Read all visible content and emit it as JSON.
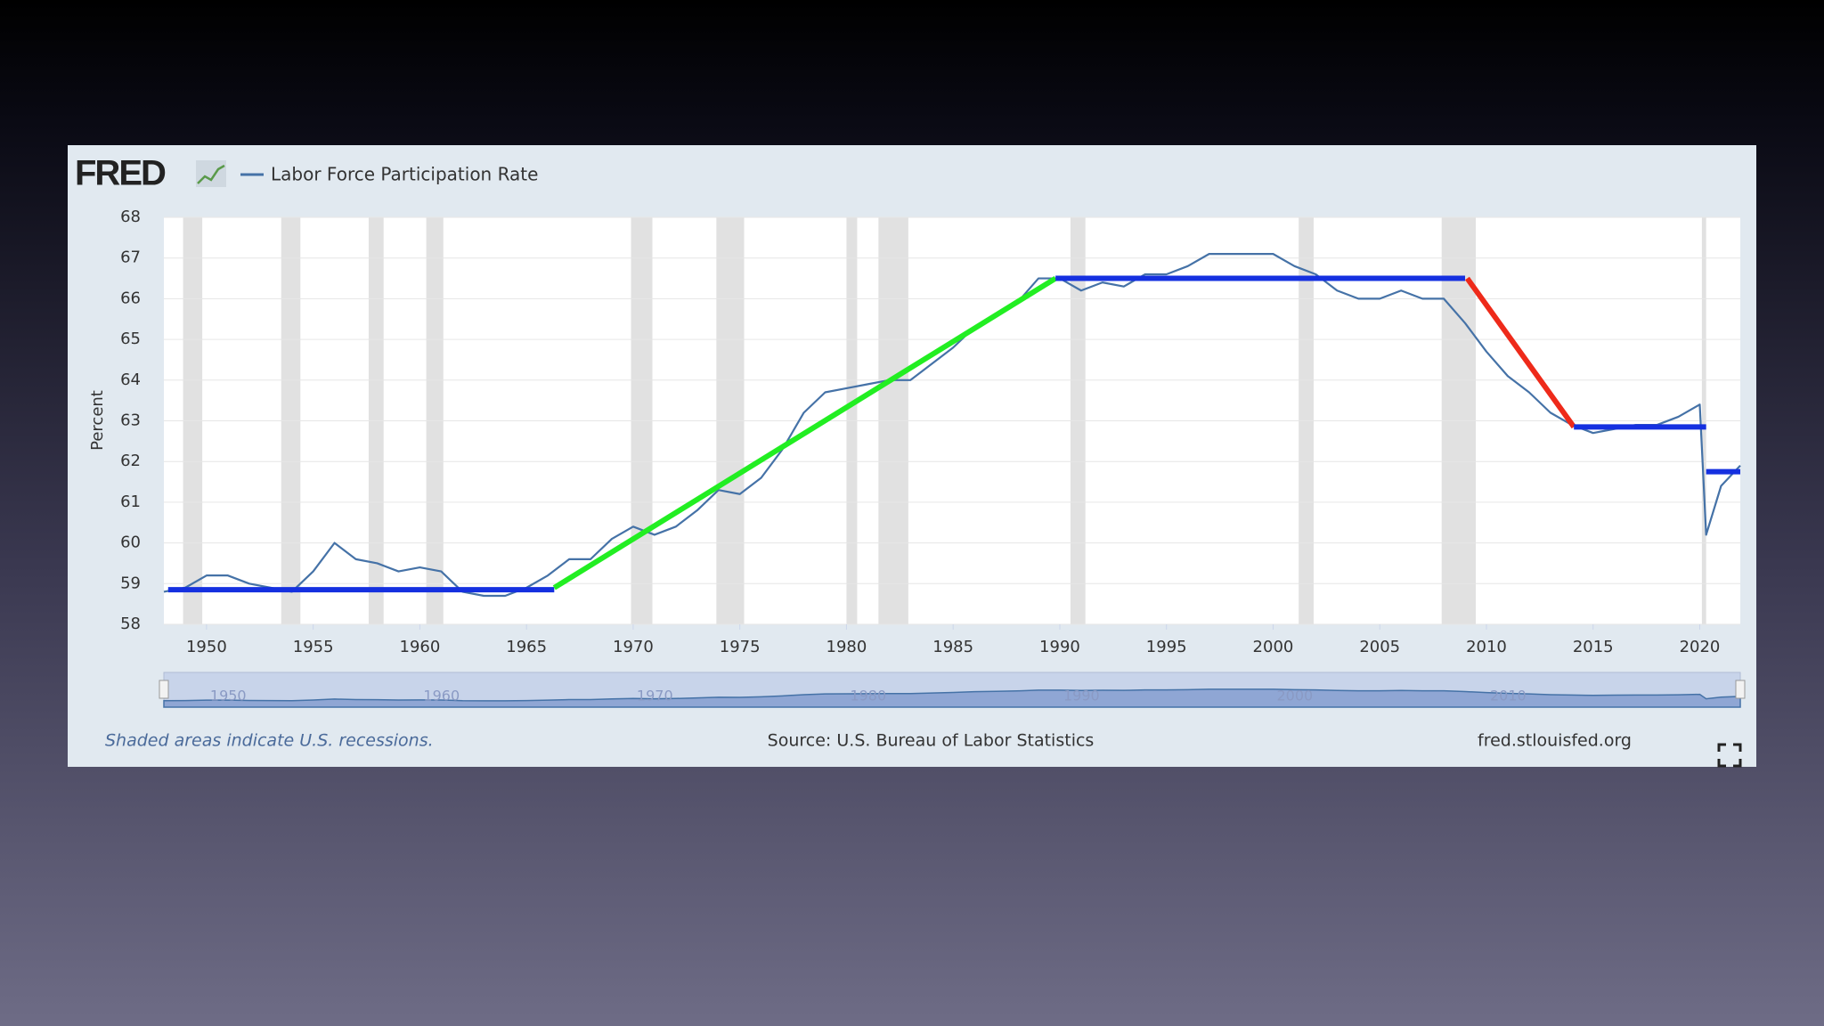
{
  "chart_data": {
    "type": "line",
    "logo": "FRED",
    "y_label": "Percent",
    "note": "Shaded areas indicate U.S. recessions.",
    "source": "Source: U.S. Bureau of Labor Statistics",
    "site": "fred.stlouisfed.org",
    "xlim": [
      1948,
      2021.9
    ],
    "ylim": [
      58,
      68
    ],
    "xticks": [
      1950,
      1955,
      1960,
      1965,
      1970,
      1975,
      1980,
      1985,
      1990,
      1995,
      2000,
      2005,
      2010,
      2015,
      2020
    ],
    "yticks": [
      58,
      59,
      60,
      61,
      62,
      63,
      64,
      65,
      66,
      67,
      68
    ],
    "grid": true,
    "navigator_labels": [
      1950,
      1960,
      1970,
      1980,
      1990,
      2000,
      2010
    ],
    "recessions": [
      [
        1948.9,
        1949.8
      ],
      [
        1953.5,
        1954.4
      ],
      [
        1957.6,
        1958.3
      ],
      [
        1960.3,
        1961.1
      ],
      [
        1969.9,
        1970.9
      ],
      [
        1973.9,
        1975.2
      ],
      [
        1980.0,
        1980.5
      ],
      [
        1981.5,
        1982.9
      ],
      [
        1990.5,
        1991.2
      ],
      [
        2001.2,
        2001.9
      ],
      [
        2007.9,
        2009.5
      ],
      [
        2020.1,
        2020.3
      ]
    ],
    "series": [
      {
        "name": "Labor Force Participation Rate",
        "color": "#4572a7",
        "x": [
          1948,
          1949,
          1950,
          1951,
          1952,
          1953,
          1954,
          1955,
          1956,
          1957,
          1958,
          1959,
          1960,
          1961,
          1962,
          1963,
          1964,
          1965,
          1966,
          1967,
          1968,
          1969,
          1970,
          1971,
          1972,
          1973,
          1974,
          1975,
          1976,
          1977,
          1978,
          1979,
          1980,
          1981,
          1982,
          1983,
          1984,
          1985,
          1986,
          1987,
          1988,
          1989,
          1990,
          1991,
          1992,
          1993,
          1994,
          1995,
          1996,
          1997,
          1998,
          1999,
          2000,
          2001,
          2002,
          2003,
          2004,
          2005,
          2006,
          2007,
          2008,
          2009,
          2010,
          2011,
          2012,
          2013,
          2014,
          2015,
          2016,
          2017,
          2018,
          2019,
          2020,
          2020.3,
          2021,
          2021.9
        ],
        "values": [
          58.8,
          58.9,
          59.2,
          59.2,
          59.0,
          58.9,
          58.8,
          59.3,
          60.0,
          59.6,
          59.5,
          59.3,
          59.4,
          59.3,
          58.8,
          58.7,
          58.7,
          58.9,
          59.2,
          59.6,
          59.6,
          60.1,
          60.4,
          60.2,
          60.4,
          60.8,
          61.3,
          61.2,
          61.6,
          62.3,
          63.2,
          63.7,
          63.8,
          63.9,
          64.0,
          64.0,
          64.4,
          64.8,
          65.3,
          65.6,
          65.9,
          66.5,
          66.5,
          66.2,
          66.4,
          66.3,
          66.6,
          66.6,
          66.8,
          67.1,
          67.1,
          67.1,
          67.1,
          66.8,
          66.6,
          66.2,
          66.0,
          66.0,
          66.2,
          66.0,
          66.0,
          65.4,
          64.7,
          64.1,
          63.7,
          63.2,
          62.9,
          62.7,
          62.8,
          62.9,
          62.9,
          63.1,
          63.4,
          60.2,
          61.4,
          61.9
        ]
      }
    ],
    "trend_lines": [
      {
        "x": [
          1948.2,
          1966.3
        ],
        "y": [
          58.85,
          58.85
        ],
        "color": "#1530e0"
      },
      {
        "x": [
          1966.3,
          1989.8
        ],
        "y": [
          58.9,
          66.5
        ],
        "color": "#22ee22"
      },
      {
        "x": [
          1989.8,
          2009.0
        ],
        "y": [
          66.5,
          66.5
        ],
        "color": "#1530e0"
      },
      {
        "x": [
          2009.1,
          2014.1
        ],
        "y": [
          66.5,
          62.85
        ],
        "color": "#ee2a1a"
      },
      {
        "x": [
          2014.1,
          2020.3
        ],
        "y": [
          62.85,
          62.85
        ],
        "color": "#1530e0"
      },
      {
        "x": [
          2020.3,
          2021.9
        ],
        "y": [
          61.75,
          61.75
        ],
        "color": "#1530e0"
      }
    ]
  }
}
